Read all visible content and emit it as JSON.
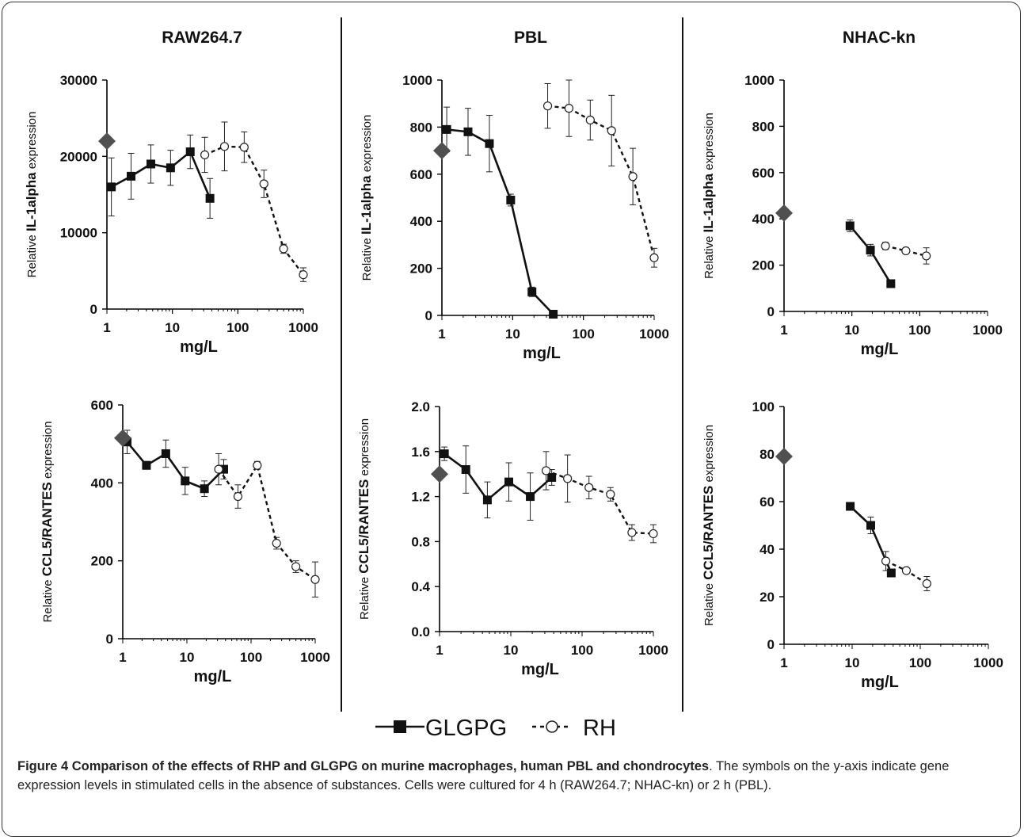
{
  "legend": {
    "glgpg": "GLGPG",
    "rh": "RH"
  },
  "caption": {
    "lead": "Figure 4 Comparison of the effects of RHP and GLGPG on murine macrophages, human PBL and chondrocytes",
    "body": ". The symbols on the y-axis indicate gene expression levels in stimulated cells in the absence of substances. Cells were cultured for 4 h (RAW264.7; NHAC-kn) or 2 h (PBL)."
  },
  "colors": {
    "line": "#111111",
    "control_marker": "#505050",
    "divider": "#111111"
  },
  "chart_data": [
    {
      "type": "line",
      "title": "RAW264.7",
      "xlabel": "mg/L",
      "ylabel_prefix": "Relative ",
      "ylabel_bold": "IL-1alpha",
      "ylabel_suffix": " expression",
      "xscale": "log",
      "xlim": [
        1,
        1000
      ],
      "ylim": [
        0,
        30000
      ],
      "yticks": [
        0,
        10000,
        20000,
        30000
      ],
      "yticklabels": [
        "0",
        "10000",
        "20000",
        "30000"
      ],
      "xticks": [
        1,
        10,
        100,
        1000
      ],
      "xticklabels": [
        "1",
        "10",
        "100",
        "1000"
      ],
      "control": 22000,
      "series": [
        {
          "name": "GLGPG",
          "x": [
            1.17,
            2.34,
            4.69,
            9.38,
            18.75,
            37.5
          ],
          "y": [
            16000,
            17400,
            19000,
            18500,
            20600,
            14500
          ],
          "err": [
            3800,
            3000,
            2500,
            2300,
            2200,
            2600
          ]
        },
        {
          "name": "RH",
          "x": [
            31.25,
            62.5,
            125,
            250,
            500,
            1000
          ],
          "y": [
            20200,
            21300,
            21200,
            16400,
            7900,
            4500
          ],
          "err": [
            2300,
            3200,
            2000,
            1800,
            600,
            900
          ]
        }
      ]
    },
    {
      "type": "line",
      "title": "PBL",
      "xlabel": "mg/L",
      "ylabel_prefix": "Relative ",
      "ylabel_bold": "IL-1alpha",
      "ylabel_suffix": " expression",
      "xscale": "log",
      "xlim": [
        1,
        1000
      ],
      "ylim": [
        0,
        1000
      ],
      "yticks": [
        0,
        200,
        400,
        600,
        800,
        1000
      ],
      "yticklabels": [
        "0",
        "200",
        "400",
        "600",
        "800",
        "1000"
      ],
      "xticks": [
        1,
        10,
        100,
        1000
      ],
      "xticklabels": [
        "1",
        "10",
        "100",
        "1000"
      ],
      "control": 700,
      "series": [
        {
          "name": "GLGPG",
          "x": [
            1.17,
            2.34,
            4.69,
            9.38,
            18.75,
            37.5
          ],
          "y": [
            790,
            780,
            730,
            490,
            100,
            5
          ],
          "err": [
            95,
            100,
            120,
            25,
            20,
            10
          ]
        },
        {
          "name": "RH",
          "x": [
            31.25,
            62.5,
            125,
            250,
            500,
            1000
          ],
          "y": [
            890,
            880,
            830,
            785,
            590,
            245
          ],
          "err": [
            95,
            120,
            85,
            150,
            120,
            40
          ]
        }
      ]
    },
    {
      "type": "line",
      "title": "NHAC-kn",
      "xlabel": "mg/L",
      "ylabel_prefix": "Relative ",
      "ylabel_bold": "IL-1alpha",
      "ylabel_suffix": " expression",
      "xscale": "log",
      "xlim": [
        1,
        1000
      ],
      "ylim": [
        0,
        1000
      ],
      "yticks": [
        0,
        200,
        400,
        600,
        800,
        1000
      ],
      "yticklabels": [
        "0",
        "200",
        "400",
        "600",
        "800",
        "1000"
      ],
      "xticks": [
        1,
        10,
        100,
        1000
      ],
      "xticklabels": [
        "1",
        "10",
        "100",
        "1000"
      ],
      "control": 425,
      "series": [
        {
          "name": "GLGPG",
          "x": [
            9.38,
            18.75,
            37.5
          ],
          "y": [
            370,
            265,
            120
          ],
          "err": [
            25,
            25,
            5
          ]
        },
        {
          "name": "RH",
          "x": [
            31.25,
            62.5,
            125
          ],
          "y": [
            283,
            262,
            240
          ],
          "err": [
            15,
            10,
            35
          ]
        }
      ]
    },
    {
      "type": "line",
      "title": "",
      "xlabel": "mg/L",
      "ylabel_prefix": "Relative ",
      "ylabel_bold": "CCL5/RANTES",
      "ylabel_suffix": "  expression",
      "xscale": "log",
      "xlim": [
        1,
        1000
      ],
      "ylim": [
        0,
        600
      ],
      "yticks": [
        0,
        200,
        400,
        600
      ],
      "yticklabels": [
        "0",
        "200",
        "400",
        "600"
      ],
      "xticks": [
        1,
        10,
        100,
        1000
      ],
      "xticklabels": [
        "1",
        "10",
        "100",
        "1000"
      ],
      "control": 515,
      "series": [
        {
          "name": "GLGPG",
          "x": [
            1.17,
            2.34,
            4.69,
            9.38,
            18.75,
            37.5
          ],
          "y": [
            505,
            445,
            475,
            405,
            385,
            435
          ],
          "err": [
            30,
            10,
            35,
            35,
            20,
            25
          ]
        },
        {
          "name": "RH",
          "x": [
            31.25,
            62.5,
            125,
            250,
            500,
            1000
          ],
          "y": [
            435,
            365,
            445,
            245,
            185,
            152
          ],
          "err": [
            40,
            30,
            10,
            15,
            15,
            45
          ]
        }
      ]
    },
    {
      "type": "line",
      "title": "",
      "xlabel": "mg/L",
      "ylabel_prefix": "Relative ",
      "ylabel_bold": "CCL5/RANTES",
      "ylabel_suffix": "  expression",
      "xscale": "log",
      "xlim": [
        1,
        1000
      ],
      "ylim": [
        0,
        2.0
      ],
      "yticks": [
        0,
        0.4,
        0.8,
        1.2,
        1.6,
        2.0
      ],
      "yticklabels": [
        "0.0",
        "0.4",
        "0.8",
        "1.2",
        "1.6",
        "2.0"
      ],
      "xticks": [
        1,
        10,
        100,
        1000
      ],
      "xticklabels": [
        "1",
        "10",
        "100",
        "1000"
      ],
      "control": 1.4,
      "series": [
        {
          "name": "GLGPG",
          "x": [
            1.17,
            2.34,
            4.69,
            9.38,
            18.75,
            37.5
          ],
          "y": [
            1.58,
            1.44,
            1.17,
            1.33,
            1.2,
            1.37
          ],
          "err": [
            0.06,
            0.21,
            0.16,
            0.17,
            0.21,
            0.07
          ]
        },
        {
          "name": "RH",
          "x": [
            31.25,
            62.5,
            125,
            250,
            500,
            1000
          ],
          "y": [
            1.43,
            1.36,
            1.28,
            1.22,
            0.88,
            0.87
          ],
          "err": [
            0.17,
            0.21,
            0.1,
            0.06,
            0.07,
            0.08
          ]
        }
      ]
    },
    {
      "type": "line",
      "title": "",
      "xlabel": "mg/L",
      "ylabel_prefix": "Relative ",
      "ylabel_bold": "CCL5/RANTES",
      "ylabel_suffix": "  expression",
      "xscale": "log",
      "xlim": [
        1,
        1000
      ],
      "ylim": [
        0,
        100
      ],
      "yticks": [
        0,
        20,
        40,
        60,
        80,
        100
      ],
      "yticklabels": [
        "0",
        "20",
        "40",
        "60",
        "80",
        "100"
      ],
      "xticks": [
        1,
        10,
        100,
        1000
      ],
      "xticklabels": [
        "1",
        "10",
        "100",
        "1000"
      ],
      "control": 79,
      "series": [
        {
          "name": "GLGPG",
          "x": [
            9.38,
            18.75,
            37.5
          ],
          "y": [
            58,
            50,
            30
          ],
          "err": [
            1,
            3.5,
            1
          ]
        },
        {
          "name": "RH",
          "x": [
            31.25,
            62.5,
            125
          ],
          "y": [
            35,
            31,
            25.5
          ],
          "err": [
            4,
            1,
            3
          ]
        }
      ]
    }
  ]
}
